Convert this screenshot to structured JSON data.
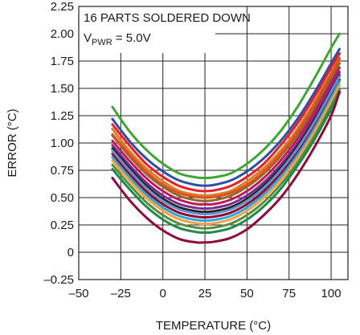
{
  "chart_data": {
    "type": "line",
    "title": "",
    "xlabel": "TEMPERATURE (°C)",
    "ylabel": "ERROR (°C)",
    "xlim": [
      -50,
      110
    ],
    "ylim": [
      -0.25,
      2.25
    ],
    "grid": true,
    "x_ticks": [
      -50,
      -25,
      0,
      25,
      50,
      75,
      100
    ],
    "x_tick_labels": [
      "–50",
      "–25",
      "0",
      "25",
      "50",
      "75",
      "100"
    ],
    "y_ticks": [
      -0.25,
      0,
      0.25,
      0.5,
      0.75,
      1.0,
      1.25,
      1.5,
      1.75,
      2.0,
      2.25
    ],
    "y_tick_labels": [
      "–0.25",
      "0",
      "0.25",
      "0.50",
      "0.75",
      "1.00",
      "1.25",
      "1.50",
      "1.75",
      "2.00",
      "2.25"
    ],
    "annotations": {
      "line1": "16 PARTS SOLDERED DOWN",
      "line2_prefix": "V",
      "line2_sub": "PWR",
      "line2_suffix": " = 5.0V"
    },
    "x": [
      -30,
      -20,
      -10,
      0,
      10,
      20,
      25,
      30,
      40,
      50,
      60,
      70,
      80,
      90,
      100,
      105
    ],
    "series": [
      {
        "color": "#3fa535",
        "values": [
          1.33,
          1.11,
          0.94,
          0.81,
          0.72,
          0.685,
          0.68,
          0.685,
          0.72,
          0.81,
          0.94,
          1.11,
          1.33,
          1.59,
          1.87,
          2.0
        ]
      },
      {
        "color": "#2e4fa3",
        "values": [
          1.22,
          1.02,
          0.86,
          0.74,
          0.655,
          0.615,
          0.61,
          0.615,
          0.655,
          0.74,
          0.86,
          1.02,
          1.22,
          1.46,
          1.73,
          1.86
        ]
      },
      {
        "color": "#ec1c24",
        "values": [
          1.17,
          0.98,
          0.81,
          0.69,
          0.605,
          0.565,
          0.56,
          0.565,
          0.605,
          0.69,
          0.81,
          0.98,
          1.18,
          1.42,
          1.69,
          1.82
        ]
      },
      {
        "color": "#e07b2a",
        "values": [
          1.13,
          0.93,
          0.77,
          0.65,
          0.56,
          0.525,
          0.52,
          0.525,
          0.56,
          0.65,
          0.77,
          0.93,
          1.13,
          1.37,
          1.64,
          1.78
        ]
      },
      {
        "color": "#8b6a2a",
        "values": [
          1.07,
          0.88,
          0.72,
          0.6,
          0.515,
          0.475,
          0.47,
          0.475,
          0.515,
          0.6,
          0.72,
          0.88,
          1.08,
          1.32,
          1.59,
          1.73
        ]
      },
      {
        "color": "#c2185b",
        "values": [
          1.02,
          0.84,
          0.68,
          0.56,
          0.48,
          0.44,
          0.44,
          0.44,
          0.48,
          0.56,
          0.68,
          0.84,
          1.04,
          1.28,
          1.55,
          1.69
        ]
      },
      {
        "color": "#7b2d8e",
        "values": [
          0.98,
          0.8,
          0.64,
          0.52,
          0.44,
          0.405,
          0.4,
          0.405,
          0.44,
          0.52,
          0.64,
          0.8,
          1.0,
          1.24,
          1.51,
          1.65
        ]
      },
      {
        "color": "#232323",
        "values": [
          0.95,
          0.77,
          0.61,
          0.49,
          0.41,
          0.375,
          0.37,
          0.375,
          0.41,
          0.49,
          0.61,
          0.77,
          0.97,
          1.21,
          1.48,
          1.62
        ]
      },
      {
        "color": "#8b0d30",
        "values": [
          0.9,
          0.72,
          0.56,
          0.44,
          0.36,
          0.325,
          0.32,
          0.325,
          0.36,
          0.44,
          0.56,
          0.72,
          0.92,
          1.16,
          1.44,
          1.58
        ]
      },
      {
        "color": "#2fa4d8",
        "values": [
          0.87,
          0.69,
          0.53,
          0.41,
          0.33,
          0.295,
          0.29,
          0.295,
          0.33,
          0.41,
          0.53,
          0.69,
          0.89,
          1.13,
          1.41,
          1.56
        ]
      },
      {
        "color": "#f0a24a",
        "values": [
          0.84,
          0.66,
          0.5,
          0.38,
          0.3,
          0.265,
          0.26,
          0.265,
          0.3,
          0.38,
          0.5,
          0.66,
          0.86,
          1.1,
          1.38,
          1.53
        ]
      },
      {
        "color": "#5b8a3a",
        "values": [
          0.8,
          0.62,
          0.46,
          0.34,
          0.26,
          0.225,
          0.22,
          0.225,
          0.26,
          0.34,
          0.46,
          0.62,
          0.82,
          1.06,
          1.34,
          1.49
        ]
      },
      {
        "color": "#1f8a4a",
        "values": [
          0.76,
          0.58,
          0.42,
          0.3,
          0.22,
          0.185,
          0.18,
          0.185,
          0.22,
          0.3,
          0.42,
          0.58,
          0.79,
          1.03,
          1.31,
          1.46
        ]
      },
      {
        "color": "#d9531e",
        "values": [
          1.08,
          0.9,
          0.74,
          0.62,
          0.54,
          0.505,
          0.5,
          0.505,
          0.54,
          0.62,
          0.74,
          0.9,
          1.1,
          1.35,
          1.63,
          1.77
        ]
      },
      {
        "color": "#6a8fd0",
        "values": [
          0.93,
          0.75,
          0.59,
          0.47,
          0.39,
          0.355,
          0.35,
          0.355,
          0.39,
          0.47,
          0.59,
          0.75,
          0.95,
          1.19,
          1.47,
          1.61
        ]
      },
      {
        "color": "#8e0a3a",
        "values": [
          0.68,
          0.48,
          0.32,
          0.2,
          0.12,
          0.09,
          0.09,
          0.095,
          0.13,
          0.21,
          0.34,
          0.5,
          0.71,
          0.96,
          1.25,
          1.47
        ]
      }
    ]
  }
}
